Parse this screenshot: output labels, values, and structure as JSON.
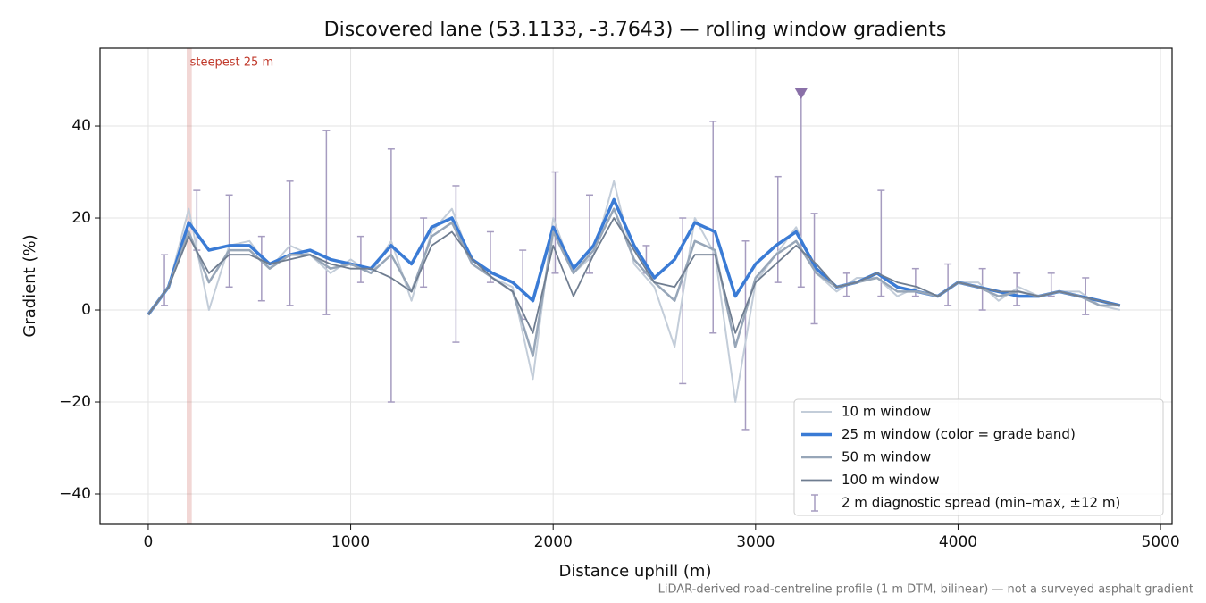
{
  "chart_data": {
    "type": "line",
    "title": "Discovered lane (53.1133, -3.7643) — rolling window gradients",
    "xlabel": "Distance uphill (m)",
    "ylabel": "Gradient (%)",
    "footnote": "LiDAR-derived road-centreline profile (1 m DTM, bilinear) — not a surveyed asphalt gradient",
    "annotation": {
      "text": "steepest 25 m",
      "color": "#c0392b",
      "span": [
        190,
        215
      ]
    },
    "marker": {
      "x": 3225,
      "y": 47,
      "color": "#8a70a8"
    },
    "xlim": [
      -238,
      5057
    ],
    "ylim": [
      -46.6,
      56.9
    ],
    "xticks": [
      0,
      1000,
      2000,
      3000,
      4000,
      5000
    ],
    "yticks": [
      {
        "value": -40,
        "label": "−40"
      },
      {
        "value": -20,
        "label": "−20"
      },
      0,
      20,
      40
    ],
    "grid": true,
    "legend": "lower right",
    "x": [
      0,
      100,
      200,
      300,
      400,
      500,
      600,
      700,
      800,
      900,
      1000,
      1100,
      1200,
      1300,
      1400,
      1500,
      1600,
      1700,
      1800,
      1900,
      2000,
      2100,
      2200,
      2300,
      2400,
      2500,
      2600,
      2700,
      2800,
      2900,
      3000,
      3100,
      3200,
      3300,
      3400,
      3500,
      3600,
      3700,
      3800,
      3900,
      4000,
      4100,
      4200,
      4300,
      4400,
      4500,
      4600,
      4700,
      4800
    ],
    "series": [
      {
        "name": "10 m window",
        "color": "#c3cdd9",
        "width": 2,
        "values": [
          -1,
          5,
          22,
          0,
          14,
          15,
          9,
          14,
          12,
          8,
          11,
          8,
          15,
          2,
          17,
          22,
          10,
          7,
          5,
          -15,
          20,
          8,
          12,
          28,
          10,
          5,
          -8,
          20,
          12,
          -20,
          6,
          12,
          18,
          8,
          4,
          7,
          7,
          3,
          5,
          3,
          6,
          6,
          2,
          5,
          3,
          4,
          4,
          1,
          0
        ]
      },
      {
        "name": "25 m window (color = grade band)",
        "color": "#3a7bd5",
        "width": 3.5,
        "values": [
          -1,
          5,
          19,
          13,
          14,
          14,
          10,
          12,
          13,
          11,
          10,
          9,
          14,
          10,
          18,
          20,
          11,
          8,
          6,
          2,
          18,
          9,
          14,
          24,
          14,
          7,
          11,
          19,
          17,
          3,
          10,
          14,
          17,
          9,
          5,
          6,
          8,
          5,
          4,
          3,
          6,
          5,
          4,
          3,
          3,
          4,
          3,
          2,
          1
        ]
      },
      {
        "name": "50 m window",
        "color": "#97a6b8",
        "width": 2.5,
        "values": [
          -1,
          5,
          17,
          6,
          13,
          13,
          9,
          12,
          12,
          9,
          10,
          8,
          12,
          4,
          16,
          19,
          10,
          7,
          4,
          -10,
          17,
          8,
          13,
          22,
          11,
          6,
          2,
          15,
          13,
          -8,
          7,
          12,
          15,
          8,
          5,
          6,
          7,
          4,
          4,
          3,
          6,
          5,
          3,
          4,
          3,
          4,
          3,
          1,
          1
        ]
      },
      {
        "name": "100 m window",
        "color": "#6f7d90",
        "width": 1.8,
        "values": [
          -1,
          5,
          16,
          8,
          12,
          12,
          10,
          11,
          12,
          10,
          9,
          9,
          7,
          4,
          14,
          17,
          11,
          7,
          4,
          -5,
          14,
          3,
          12,
          20,
          13,
          6,
          5,
          12,
          12,
          -5,
          6,
          10,
          14,
          10,
          5,
          6,
          8,
          6,
          5,
          3,
          6,
          5,
          4,
          4,
          3,
          4,
          3,
          2,
          1
        ]
      }
    ],
    "errorbars": {
      "name": "2 m diagnostic spread (min–max, ±12 m)",
      "color": "#a69cc0",
      "x": [
        80,
        240,
        400,
        560,
        700,
        880,
        1050,
        1200,
        1360,
        1520,
        1690,
        1850,
        2010,
        2180,
        2460,
        2640,
        2790,
        2950,
        3110,
        3225,
        3290,
        3450,
        3620,
        3790,
        3950,
        4120,
        4290,
        4460,
        4630
      ],
      "low": [
        1,
        13,
        5,
        2,
        1,
        -1,
        6,
        -20,
        5,
        -7,
        6,
        -2,
        8,
        8,
        8,
        -16,
        -5,
        -26,
        6,
        5,
        -3,
        3,
        3,
        3,
        1,
        0,
        1,
        3,
        -1
      ],
      "high": [
        12,
        26,
        25,
        16,
        28,
        39,
        16,
        35,
        20,
        27,
        17,
        13,
        30,
        25,
        14,
        20,
        41,
        15,
        29,
        47,
        21,
        8,
        26,
        9,
        10,
        9,
        8,
        8,
        7
      ]
    }
  }
}
